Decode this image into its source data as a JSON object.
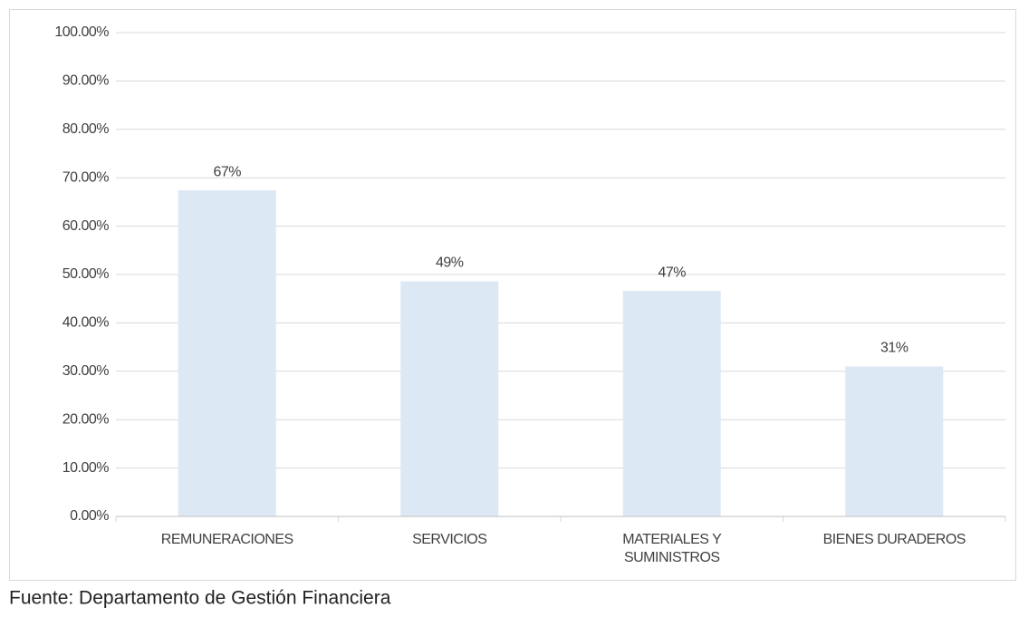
{
  "chart_data": {
    "type": "bar",
    "categories": [
      "REMUNERACIONES",
      "SERVICIOS",
      "MATERIALES Y SUMINISTROS",
      "BIENES DURADEROS"
    ],
    "values": [
      67.4,
      48.6,
      46.6,
      31
    ],
    "value_labels": [
      "67%",
      "49%",
      "47%",
      "31%"
    ],
    "color": "#dde8f5",
    "ylim": [
      0,
      100
    ],
    "yticks": [
      {
        "value": 0,
        "label": "0.00%"
      },
      {
        "value": 10,
        "label": "10.00%"
      },
      {
        "value": 20,
        "label": "20.00%"
      },
      {
        "value": 30,
        "label": "30.00%"
      },
      {
        "value": 40,
        "label": "40.00%"
      },
      {
        "value": 50,
        "label": "50.00%"
      },
      {
        "value": 60,
        "label": "60.00%"
      },
      {
        "value": 70,
        "label": "70.00%"
      },
      {
        "value": 80,
        "label": "80.00%"
      },
      {
        "value": 90,
        "label": "90.00%"
      },
      {
        "value": 100,
        "label": "100.00%"
      }
    ],
    "grid": true,
    "source": "Fuente:  Departamento de Gestión Financiera"
  }
}
